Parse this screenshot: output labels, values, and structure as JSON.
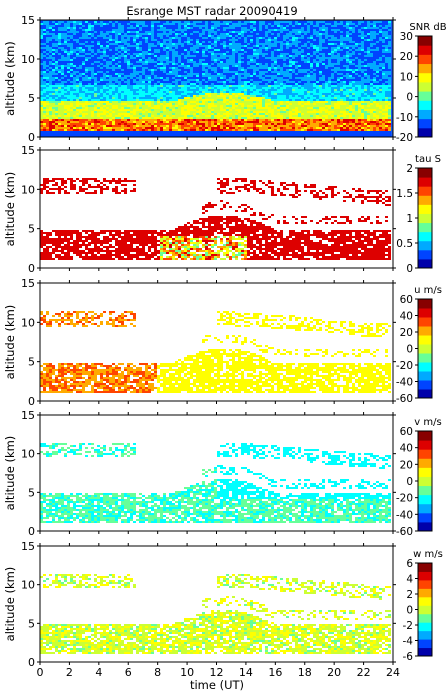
{
  "chart_data": {
    "type": "heatmap",
    "title": "Esrange MST radar 20090419",
    "xlabel": "time (UT)",
    "xlim": [
      0,
      24
    ],
    "xticks": [
      0,
      2,
      4,
      6,
      8,
      10,
      12,
      14,
      16,
      18,
      20,
      22,
      24
    ],
    "panels": [
      {
        "name": "snr",
        "ylabel": "altitude (km)",
        "ylim": [
          0,
          15
        ],
        "yticks": [
          0,
          5,
          10,
          15
        ],
        "colorbar_label": "SNR dB",
        "clim": [
          -20,
          30
        ],
        "cticks": [
          -20,
          -10,
          0,
          10,
          20,
          30
        ]
      },
      {
        "name": "tau",
        "ylabel": "altitude (km)",
        "ylim": [
          0,
          15
        ],
        "yticks": [
          0,
          5,
          10,
          15
        ],
        "colorbar_label": "tau S",
        "clim": [
          0,
          2
        ],
        "cticks": [
          0,
          0.5,
          1,
          1.5,
          2
        ]
      },
      {
        "name": "u",
        "ylabel": "altitude (km)",
        "ylim": [
          0,
          15
        ],
        "yticks": [
          0,
          5,
          10,
          15
        ],
        "colorbar_label": "u m/s",
        "clim": [
          -60,
          60
        ],
        "cticks": [
          -60,
          -40,
          -20,
          0,
          20,
          40,
          60
        ]
      },
      {
        "name": "v",
        "ylabel": "altitude (km)",
        "ylim": [
          0,
          15
        ],
        "yticks": [
          0,
          5,
          10,
          15
        ],
        "colorbar_label": "v m/s",
        "clim": [
          -60,
          60
        ],
        "cticks": [
          -60,
          -40,
          -20,
          0,
          20,
          40,
          60
        ]
      },
      {
        "name": "w",
        "ylabel": "altitude (km)",
        "ylim": [
          0,
          15
        ],
        "yticks": [
          0,
          5,
          10,
          15
        ],
        "colorbar_label": "w m/s",
        "clim": [
          -6,
          6
        ],
        "cticks": [
          -6,
          -4,
          -2,
          0,
          2,
          4,
          6
        ]
      }
    ],
    "colormap": [
      "#0000aa",
      "#0044ff",
      "#00aaff",
      "#00ffff",
      "#66ff99",
      "#ccff33",
      "#ffff00",
      "#ffaa00",
      "#ff4400",
      "#dd0000",
      "#880000"
    ]
  }
}
